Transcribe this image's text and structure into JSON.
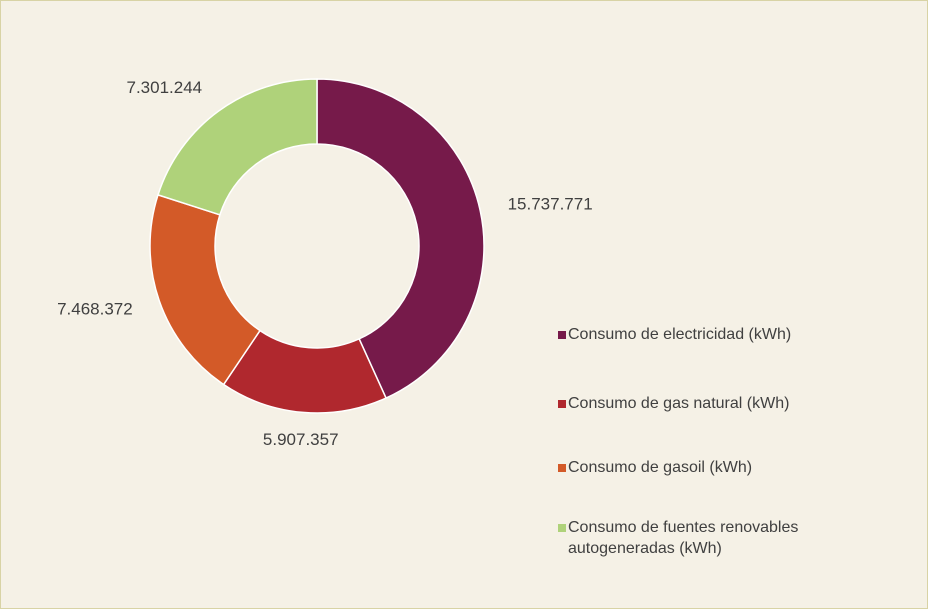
{
  "chart_data": {
    "type": "pie",
    "categories": [
      "Consumo de electricidad (kWh)",
      "Consumo de gas natural (kWh)",
      "Consumo de gasoil (kWh)",
      "Consumo de fuentes renovables autogeneradas (kWh)"
    ],
    "values": [
      15737771,
      5907357,
      7468372,
      7301244
    ],
    "value_labels": [
      "15.737.771",
      "5.907.357",
      "7.468.372",
      "7.301.244"
    ],
    "colors": [
      "#761a4a",
      "#b0282e",
      "#d35a28",
      "#afd27a"
    ],
    "legend": "right"
  }
}
